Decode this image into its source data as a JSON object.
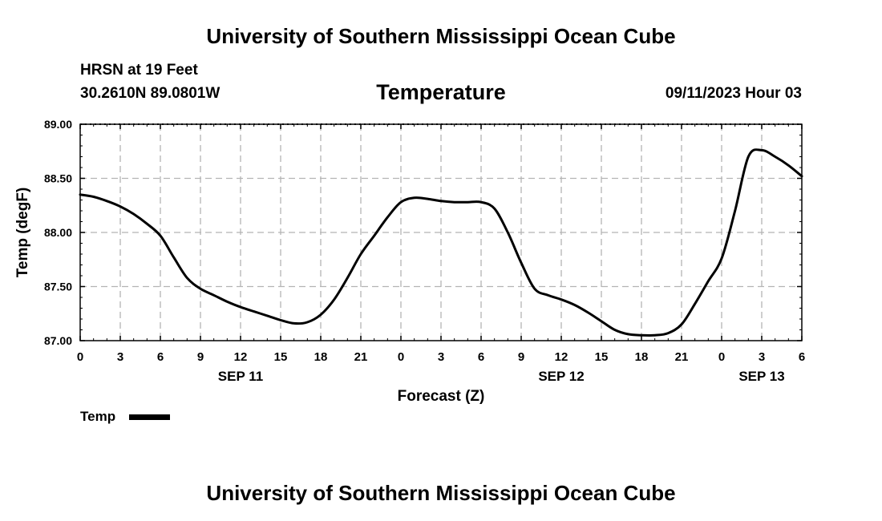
{
  "header": {
    "title": "University of Southern Mississippi Ocean Cube",
    "station": "HRSN at 19 Feet",
    "coords": "30.2610N  89.0801W",
    "run_time": "09/11/2023 Hour 03"
  },
  "footer": {
    "title": "University of Southern Mississippi Ocean Cube"
  },
  "chart_data": {
    "type": "line",
    "title": "Temperature",
    "xlabel": "Forecast (Z)",
    "ylabel": "Temp (degF)",
    "ylim": [
      87.0,
      89.0
    ],
    "y_ticks": [
      "87.00",
      "87.50",
      "88.00",
      "88.50",
      "89.00"
    ],
    "xlim": [
      0,
      54
    ],
    "x_unit": "hours since 2023-09-11 00Z",
    "x_ticks": [
      "0",
      "3",
      "6",
      "9",
      "12",
      "15",
      "18",
      "21",
      "0",
      "3",
      "6",
      "9",
      "12",
      "15",
      "18",
      "21",
      "0",
      "3",
      "6"
    ],
    "date_labels": [
      {
        "label": "SEP 11",
        "hour": 12
      },
      {
        "label": "SEP 12",
        "hour": 36
      },
      {
        "label": "SEP 13",
        "hour": 51
      }
    ],
    "grid": true,
    "legend": {
      "position": "bottom-left",
      "entry": "Temp"
    },
    "line_color": "#000000",
    "series": [
      {
        "name": "Temp",
        "x": [
          0,
          1,
          2,
          3,
          4,
          5,
          6,
          7,
          8,
          9,
          10,
          11,
          12,
          13,
          14,
          15,
          16,
          17,
          18,
          19,
          20,
          21,
          22,
          23,
          24,
          25,
          26,
          27,
          28,
          29,
          30,
          31,
          32,
          33,
          34,
          35,
          36,
          37,
          38,
          39,
          40,
          41,
          42,
          43,
          44,
          45,
          46,
          47,
          48,
          49,
          50,
          51,
          52,
          53,
          54
        ],
        "values": [
          88.35,
          88.33,
          88.29,
          88.24,
          88.17,
          88.08,
          87.97,
          87.77,
          87.58,
          87.48,
          87.42,
          87.36,
          87.31,
          87.27,
          87.23,
          87.19,
          87.16,
          87.17,
          87.24,
          87.38,
          87.58,
          87.8,
          87.97,
          88.14,
          88.28,
          88.32,
          88.31,
          88.29,
          88.28,
          88.28,
          88.28,
          88.22,
          88.0,
          87.72,
          87.48,
          87.42,
          87.38,
          87.33,
          87.26,
          87.18,
          87.1,
          87.06,
          87.05,
          87.05,
          87.07,
          87.15,
          87.34,
          87.55,
          87.76,
          88.2,
          88.7,
          88.76,
          88.7,
          88.62,
          88.52
        ]
      }
    ]
  }
}
